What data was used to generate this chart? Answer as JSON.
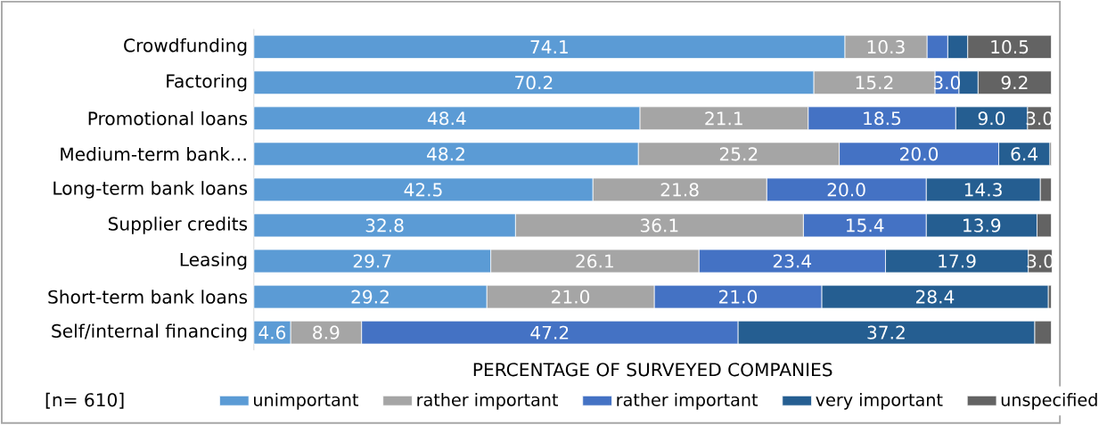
{
  "chart_data": {
    "type": "bar",
    "orientation": "horizontal",
    "stacked": true,
    "categories": [
      "Crowdfunding",
      "Factoring",
      "Promotional loans",
      "Medium-term bank…",
      "Long-term bank loans",
      "Supplier credits",
      "Leasing",
      "Short-term bank loans",
      "Self/internal financing"
    ],
    "xlabel": "PERCENTAGE OF SURVEYED COMPANIES",
    "xlim": [
      0,
      100
    ],
    "legend": "bottom",
    "annotations": [
      "[n= 610]"
    ],
    "series": [
      {
        "name": "unimportant",
        "color": "#5b9bd5",
        "values": [
          74.1,
          70.2,
          48.4,
          48.2,
          42.5,
          32.8,
          29.7,
          29.2,
          4.6
        ],
        "value_labels": [
          "74.1",
          "70.2",
          "48.4",
          "48.2",
          "42.5",
          "32.8",
          "29.7",
          "29.2",
          "4.6"
        ]
      },
      {
        "name": "rather important",
        "color": "#a5a5a5",
        "values": [
          10.3,
          15.2,
          21.1,
          25.2,
          21.8,
          36.1,
          26.1,
          21.0,
          8.9
        ],
        "value_labels": [
          "10.3",
          "15.2",
          "21.1",
          "25.2",
          "21.8",
          "36.1",
          "26.1",
          "21.0",
          "8.9"
        ]
      },
      {
        "name": "rather important",
        "color": "#4472c4",
        "values": [
          2.6,
          3.0,
          18.5,
          20.0,
          20.0,
          15.4,
          23.4,
          21.0,
          47.2
        ],
        "value_labels": [
          null,
          "3.0",
          "18.5",
          "20.0",
          "20.0",
          "15.4",
          "23.4",
          "21.0",
          "47.2"
        ]
      },
      {
        "name": "very important",
        "color": "#255e91",
        "values": [
          2.5,
          2.4,
          9.0,
          6.4,
          14.3,
          13.9,
          17.9,
          28.4,
          37.2
        ],
        "value_labels": [
          null,
          null,
          "9.0",
          "6.4",
          "14.3",
          "13.9",
          "17.9",
          "28.4",
          "37.2"
        ]
      },
      {
        "name": "unspecified",
        "color": "#636363",
        "values": [
          10.5,
          9.2,
          3.0,
          0.2,
          1.4,
          1.8,
          3.0,
          0.4,
          2.1
        ],
        "value_labels": [
          "10.5",
          "9.2",
          "3.0",
          null,
          null,
          null,
          "3.0",
          null,
          null
        ]
      }
    ]
  }
}
